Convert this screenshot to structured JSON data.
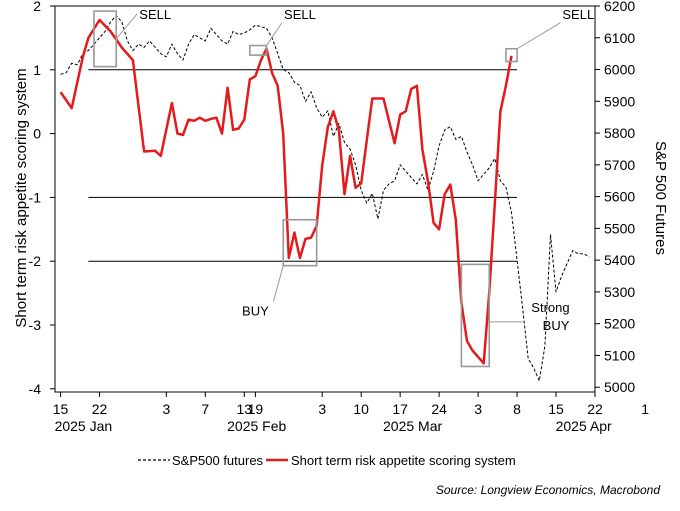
{
  "chart_data": {
    "type": "line",
    "source": "Source: Longview Economics, Macrobond",
    "y_left": {
      "label": "Short term risk appetite scoring system",
      "range": [
        -4.05,
        2.0
      ],
      "ticks": [
        2,
        1,
        0,
        -1,
        -2,
        -3,
        -4
      ],
      "tick_labels": [
        "2",
        "1",
        "0",
        "-1",
        "-2",
        "-3",
        "-4"
      ],
      "reference_lines": [
        2,
        1,
        -1,
        -2
      ]
    },
    "y_right": {
      "label": "S&P 500 Futures",
      "range": [
        4985,
        6200
      ],
      "ticks": [
        6200,
        6100,
        6000,
        5900,
        5800,
        5700,
        5600,
        5500,
        5400,
        5300,
        5200,
        5100,
        5000
      ],
      "tick_labels": [
        "6200",
        "6100",
        "6000",
        "5900",
        "5800",
        "5700",
        "5600",
        "5500",
        "5400",
        "5300",
        "5200",
        "5100",
        "5000"
      ]
    },
    "x": {
      "day_range": [
        14,
        111
      ],
      "ticks": [
        {
          "day": 15,
          "label": "15"
        },
        {
          "day": 22,
          "label": "22"
        },
        {
          "day": 34,
          "label": "3"
        },
        {
          "day": 41,
          "label": "7"
        },
        {
          "day": 48,
          "label": "13"
        },
        {
          "day": 50,
          "label": "19"
        },
        {
          "day": 62,
          "label": "3"
        },
        {
          "day": 69,
          "label": "10"
        },
        {
          "day": 76,
          "label": "17"
        },
        {
          "day": 83,
          "label": "24"
        },
        {
          "day": 90,
          "label": "3"
        },
        {
          "day": 97,
          "label": "8"
        },
        {
          "day": 104,
          "label": "15"
        },
        {
          "day": 111,
          "label": "22"
        },
        {
          "day": 120,
          "label": "1"
        }
      ],
      "month_labels": [
        {
          "day": 15,
          "label": "2025 Jan"
        },
        {
          "day": 46,
          "label": "2025 Feb"
        },
        {
          "day": 74,
          "label": "2025 Mar"
        },
        {
          "day": 105,
          "label": "2025 Apr"
        }
      ]
    },
    "series": [
      {
        "name": "S&P500 futures",
        "axis": "right",
        "style": "dashed",
        "color": "#000000",
        "points": [
          [
            15,
            5985
          ],
          [
            16,
            5990
          ],
          [
            17,
            6020
          ],
          [
            18,
            6015
          ],
          [
            19,
            6050
          ],
          [
            20,
            6060
          ],
          [
            21,
            6080
          ],
          [
            22,
            6100
          ],
          [
            23,
            6120
          ],
          [
            24,
            6150
          ],
          [
            25,
            6170
          ],
          [
            26,
            6150
          ],
          [
            27,
            6090
          ],
          [
            28,
            6060
          ],
          [
            29,
            6080
          ],
          [
            30,
            6070
          ],
          [
            31,
            6090
          ],
          [
            32,
            6070
          ],
          [
            33,
            6050
          ],
          [
            34,
            6040
          ],
          [
            35,
            6080
          ],
          [
            36,
            6050
          ],
          [
            37,
            6030
          ],
          [
            38,
            6080
          ],
          [
            39,
            6110
          ],
          [
            40,
            6100
          ],
          [
            41,
            6090
          ],
          [
            42,
            6130
          ],
          [
            43,
            6110
          ],
          [
            44,
            6090
          ],
          [
            45,
            6080
          ],
          [
            46,
            6120
          ],
          [
            47,
            6110
          ],
          [
            48,
            6115
          ],
          [
            49,
            6125
          ],
          [
            50,
            6140
          ],
          [
            51,
            6135
          ],
          [
            52,
            6130
          ],
          [
            53,
            6100
          ],
          [
            54,
            6050
          ],
          [
            55,
            6000
          ],
          [
            56,
            5990
          ],
          [
            57,
            5960
          ],
          [
            58,
            5950
          ],
          [
            59,
            5900
          ],
          [
            60,
            5930
          ],
          [
            61,
            5880
          ],
          [
            62,
            5850
          ],
          [
            63,
            5870
          ],
          [
            64,
            5790
          ],
          [
            65,
            5830
          ],
          [
            66,
            5770
          ],
          [
            67,
            5750
          ],
          [
            68,
            5700
          ],
          [
            69,
            5620
          ],
          [
            70,
            5580
          ],
          [
            71,
            5610
          ],
          [
            72,
            5530
          ],
          [
            73,
            5620
          ],
          [
            74,
            5640
          ],
          [
            75,
            5650
          ],
          [
            76,
            5700
          ],
          [
            77,
            5680
          ],
          [
            78,
            5660
          ],
          [
            79,
            5640
          ],
          [
            80,
            5670
          ],
          [
            81,
            5620
          ],
          [
            82,
            5680
          ],
          [
            83,
            5760
          ],
          [
            84,
            5810
          ],
          [
            85,
            5820
          ],
          [
            86,
            5780
          ],
          [
            87,
            5790
          ],
          [
            88,
            5740
          ],
          [
            89,
            5700
          ],
          [
            90,
            5650
          ],
          [
            91,
            5670
          ],
          [
            92,
            5690
          ],
          [
            93,
            5720
          ],
          [
            94,
            5650
          ],
          [
            95,
            5630
          ],
          [
            96,
            5550
          ],
          [
            97,
            5400
          ],
          [
            98,
            5250
          ],
          [
            99,
            5090
          ],
          [
            100,
            5060
          ],
          [
            101,
            5020
          ],
          [
            102,
            5130
          ],
          [
            103,
            5480
          ],
          [
            104,
            5300
          ],
          [
            105,
            5350
          ],
          [
            106,
            5390
          ],
          [
            107,
            5430
          ],
          [
            108,
            5420
          ],
          [
            109,
            5420
          ],
          [
            110,
            5410
          ]
        ]
      },
      {
        "name": "Short term risk appetite scoring system",
        "axis": "left",
        "style": "solid",
        "color": "#e41a1c",
        "points": [
          [
            15,
            0.65
          ],
          [
            17,
            0.4
          ],
          [
            19,
            1.2
          ],
          [
            20,
            1.5
          ],
          [
            22,
            1.78
          ],
          [
            24,
            1.6
          ],
          [
            26,
            1.35
          ],
          [
            28,
            1.15
          ],
          [
            30,
            -0.28
          ],
          [
            32,
            -0.27
          ],
          [
            33,
            -0.35
          ],
          [
            35,
            0.48
          ],
          [
            36,
            0.0
          ],
          [
            37,
            -0.02
          ],
          [
            38,
            0.22
          ],
          [
            39,
            0.2
          ],
          [
            40,
            0.25
          ],
          [
            41,
            0.2
          ],
          [
            42,
            0.23
          ],
          [
            43,
            0.25
          ],
          [
            44,
            0.0
          ],
          [
            45,
            0.72
          ],
          [
            46,
            0.06
          ],
          [
            47,
            0.08
          ],
          [
            48,
            0.22
          ],
          [
            49,
            0.85
          ],
          [
            50,
            0.9
          ],
          [
            51,
            1.15
          ],
          [
            52,
            1.33
          ],
          [
            53,
            0.95
          ],
          [
            54,
            0.75
          ],
          [
            55,
            0.0
          ],
          [
            56,
            -1.95
          ],
          [
            57,
            -1.55
          ],
          [
            58,
            -1.95
          ],
          [
            59,
            -1.65
          ],
          [
            60,
            -1.63
          ],
          [
            61,
            -1.45
          ],
          [
            62,
            -0.5
          ],
          [
            63,
            0.1
          ],
          [
            64,
            0.35
          ],
          [
            65,
            0.05
          ],
          [
            66,
            -0.95
          ],
          [
            67,
            -0.35
          ],
          [
            68,
            -0.85
          ],
          [
            69,
            -0.78
          ],
          [
            70,
            -0.1
          ],
          [
            71,
            0.55
          ],
          [
            72,
            0.55
          ],
          [
            73,
            0.55
          ],
          [
            74,
            0.2
          ],
          [
            75,
            -0.15
          ],
          [
            76,
            0.3
          ],
          [
            77,
            0.35
          ],
          [
            78,
            0.7
          ],
          [
            79,
            0.75
          ],
          [
            80,
            -0.25
          ],
          [
            81,
            -0.75
          ],
          [
            82,
            -1.4
          ],
          [
            83,
            -1.5
          ],
          [
            84,
            -0.95
          ],
          [
            85,
            -0.8
          ],
          [
            86,
            -1.35
          ],
          [
            87,
            -2.65
          ],
          [
            88,
            -3.25
          ],
          [
            89,
            -3.4
          ],
          [
            90,
            -3.5
          ],
          [
            91,
            -3.6
          ],
          [
            92,
            -2.5
          ],
          [
            93,
            -1.1
          ],
          [
            94,
            0.35
          ],
          [
            95,
            0.75
          ],
          [
            96,
            1.22
          ]
        ]
      }
    ],
    "annotations": [
      {
        "text": "SELL",
        "box_day_range": [
          21,
          25
        ],
        "box_y_range": [
          1.05,
          1.92
        ],
        "label_day": 32,
        "label_y": 1.8
      },
      {
        "text": "SELL",
        "box_day_range": [
          49,
          52
        ],
        "box_y_range": [
          1.23,
          1.38
        ],
        "label_day": 58,
        "label_y": 1.8
      },
      {
        "text": "BUY",
        "box_day_range": [
          55,
          61
        ],
        "box_y_range": [
          -2.07,
          -1.35
        ],
        "label_day": 50,
        "label_y": -2.85
      },
      {
        "text": "SELL",
        "box_day_range": [
          95,
          97
        ],
        "box_y_range": [
          1.13,
          1.33
        ],
        "label_day": 108,
        "label_y": 1.8
      },
      {
        "text": "Strong",
        "box_day_range": [
          87,
          92
        ],
        "box_y_range": [
          -3.65,
          -2.05
        ],
        "label_day": 103,
        "label_y": -2.8
      },
      {
        "text": "BUY",
        "label_day": 104,
        "label_y": -3.08
      }
    ],
    "legend": [
      {
        "label": "S&P500 futures",
        "style": "dashed"
      },
      {
        "label": "Short term risk appetite scoring system",
        "style": "solid"
      }
    ]
  }
}
